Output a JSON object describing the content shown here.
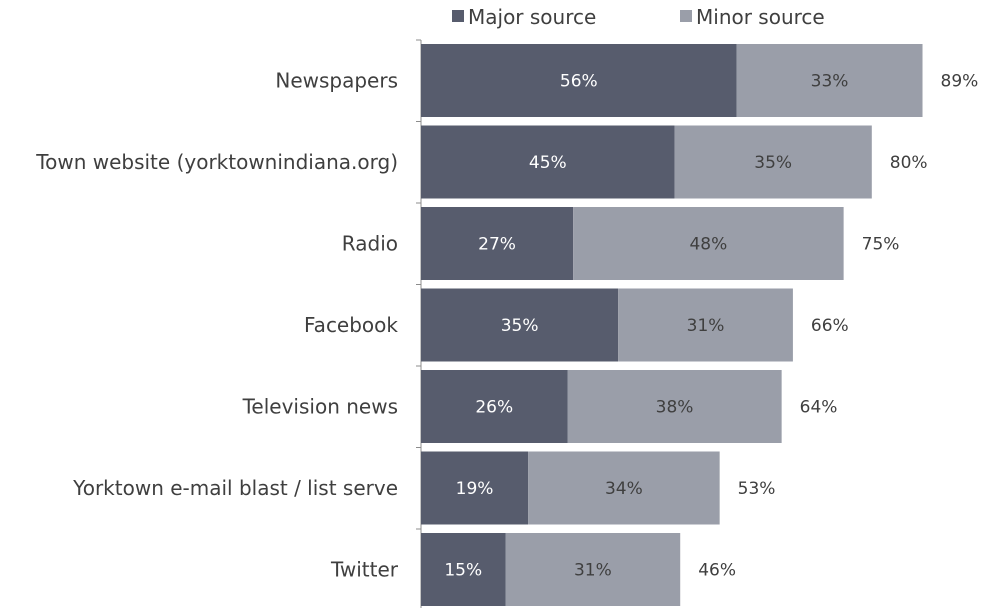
{
  "chart_data": {
    "type": "bar",
    "orientation": "horizontal",
    "stacked": true,
    "categories": [
      "Newspapers",
      "Town website (yorktownindiana.org)",
      "Radio",
      "Facebook",
      "Television news",
      "Yorktown e-mail blast / list serve",
      "Twitter"
    ],
    "series": [
      {
        "name": "Major source",
        "values": [
          56,
          45,
          27,
          35,
          26,
          19,
          15
        ],
        "color": "#575c6d"
      },
      {
        "name": "Minor source",
        "values": [
          33,
          35,
          48,
          31,
          38,
          34,
          31
        ],
        "color": "#9a9ea9"
      }
    ],
    "totals": [
      89,
      80,
      75,
      66,
      64,
      53,
      46
    ],
    "unit": "%",
    "xlim": [
      0,
      100
    ],
    "grid": false,
    "legend": {
      "position": "top"
    },
    "label_colors": {
      "major": "#ffffff",
      "minor": "#3f3f3f",
      "total": "#3f3f3f"
    }
  }
}
